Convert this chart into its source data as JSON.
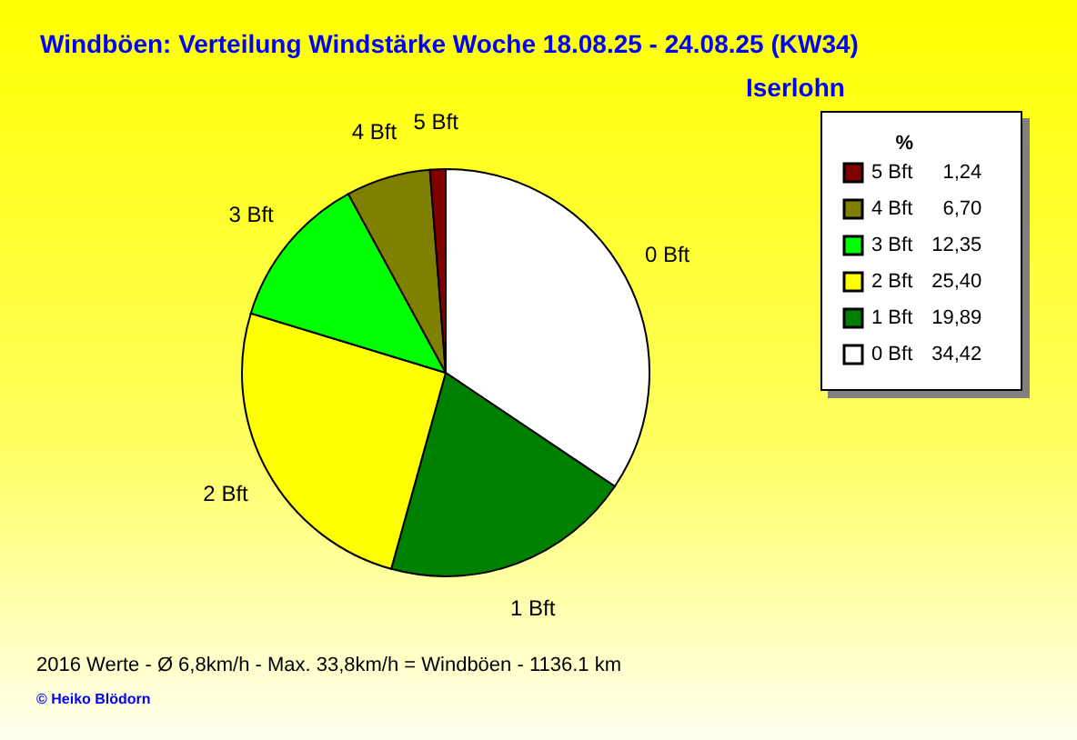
{
  "chart_data": {
    "type": "pie",
    "title": "Windböen: Verteilung Windstärke  Woche 18.08.25 - 24.08.25 (KW34)",
    "subtitle": "Iserlohn",
    "legend_title": "%",
    "legend": "top right",
    "categories": [
      "0 Bft",
      "1 Bft",
      "2 Bft",
      "3 Bft",
      "4 Bft",
      "5 Bft"
    ],
    "values": [
      34.42,
      19.89,
      25.4,
      12.35,
      6.7,
      1.24
    ],
    "value_labels": [
      "34,42",
      "19,89",
      "25,40",
      "12,35",
      "6,70",
      "1,24"
    ],
    "colors": [
      "#ffffff",
      "#008000",
      "#ffff00",
      "#00ff00",
      "#808000",
      "#800000"
    ],
    "annotations": [
      "2016 Werte   -   Ø 6,8km/h  -  Max. 33,8km/h = Windböen   -   1136.1 km",
      "© Heiko Blödorn"
    ]
  }
}
